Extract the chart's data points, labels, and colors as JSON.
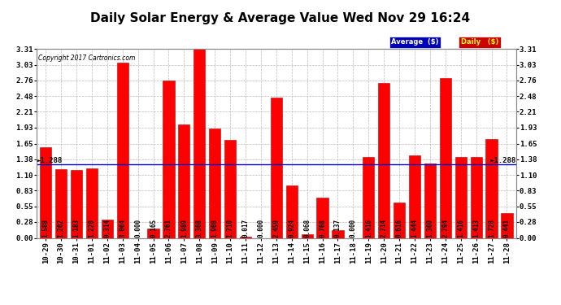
{
  "title": "Daily Solar Energy & Average Value Wed Nov 29 16:24",
  "copyright": "Copyright 2017 Cartronics.com",
  "categories": [
    "10-29",
    "10-30",
    "10-31",
    "11-01",
    "11-02",
    "11-03",
    "11-04",
    "11-05",
    "11-06",
    "11-07",
    "11-08",
    "11-09",
    "11-10",
    "11-11",
    "11-12",
    "11-13",
    "11-14",
    "11-15",
    "11-16",
    "11-17",
    "11-18",
    "11-19",
    "11-20",
    "11-21",
    "11-22",
    "11-23",
    "11-24",
    "11-25",
    "11-26",
    "11-27",
    "11-28"
  ],
  "values": [
    1.588,
    1.202,
    1.183,
    1.22,
    0.314,
    3.064,
    0.0,
    0.165,
    2.761,
    1.989,
    3.308,
    1.908,
    1.71,
    0.017,
    0.0,
    2.459,
    0.924,
    0.068,
    0.708,
    0.137,
    0.0,
    1.416,
    2.714,
    0.616,
    1.444,
    1.3,
    2.794,
    1.416,
    1.413,
    1.728,
    0.441
  ],
  "average": 1.288,
  "bar_color": "#FF0000",
  "bar_edge_color": "#BB0000",
  "average_line_color": "#0000CC",
  "average_label": "Average  ($)",
  "daily_label": "Daily   ($)",
  "ylim": [
    0.0,
    3.31
  ],
  "yticks": [
    0.0,
    0.28,
    0.55,
    0.83,
    1.1,
    1.38,
    1.65,
    1.93,
    2.21,
    2.48,
    2.76,
    3.03,
    3.31
  ],
  "grid_color": "#BBBBBB",
  "background_color": "#FFFFFF",
  "title_fontsize": 11,
  "tick_fontsize": 6.5,
  "avg_annotation": "►1.288",
  "legend_avg_bg": "#0000BB",
  "legend_daily_bg": "#CC0000",
  "bar_value_fontsize": 5.5
}
